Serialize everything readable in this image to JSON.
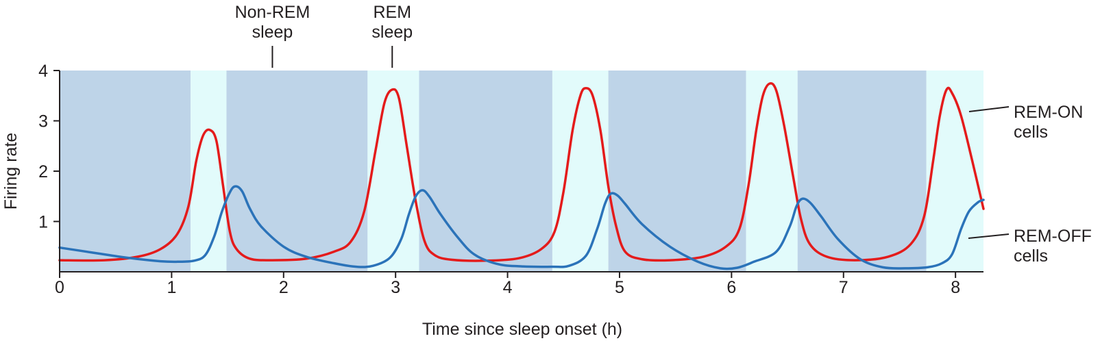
{
  "chart_data": {
    "type": "line",
    "title": "",
    "xlabel": "Time since sleep onset (h)",
    "ylabel": "Firing rate",
    "xlim": [
      0,
      8.25
    ],
    "ylim": [
      0,
      4
    ],
    "x_ticks": [
      0,
      1,
      2,
      3,
      4,
      5,
      6,
      7,
      8
    ],
    "y_ticks": [
      1,
      2,
      3,
      4
    ],
    "grid": false,
    "stage_annotations": [
      {
        "label": "Non-REM\nsleep",
        "x": 1.9
      },
      {
        "label": "REM\nsleep",
        "x": 2.97
      }
    ],
    "sleep_stages": [
      {
        "stage": "Non-REM",
        "start": 0,
        "end": 1.17
      },
      {
        "stage": "REM",
        "start": 1.17,
        "end": 1.49
      },
      {
        "stage": "Non-REM",
        "start": 1.49,
        "end": 2.75
      },
      {
        "stage": "REM",
        "start": 2.75,
        "end": 3.21
      },
      {
        "stage": "Non-REM",
        "start": 3.21,
        "end": 4.4
      },
      {
        "stage": "REM",
        "start": 4.4,
        "end": 4.9
      },
      {
        "stage": "Non-REM",
        "start": 4.9,
        "end": 6.13
      },
      {
        "stage": "REM",
        "start": 6.13,
        "end": 6.59
      },
      {
        "stage": "Non-REM",
        "start": 6.59,
        "end": 7.74
      },
      {
        "stage": "REM",
        "start": 7.74,
        "end": 8.25
      }
    ],
    "series": [
      {
        "name": "REM-ON\ncells",
        "color": "#e41b1b",
        "points": [
          [
            0,
            0.23
          ],
          [
            0.4,
            0.23
          ],
          [
            0.7,
            0.3
          ],
          [
            0.9,
            0.45
          ],
          [
            1.05,
            0.75
          ],
          [
            1.15,
            1.3
          ],
          [
            1.22,
            2.2
          ],
          [
            1.28,
            2.7
          ],
          [
            1.34,
            2.82
          ],
          [
            1.4,
            2.6
          ],
          [
            1.46,
            1.7
          ],
          [
            1.52,
            0.8
          ],
          [
            1.58,
            0.45
          ],
          [
            1.7,
            0.26
          ],
          [
            1.9,
            0.23
          ],
          [
            2.2,
            0.26
          ],
          [
            2.45,
            0.4
          ],
          [
            2.6,
            0.6
          ],
          [
            2.72,
            1.2
          ],
          [
            2.82,
            2.4
          ],
          [
            2.9,
            3.35
          ],
          [
            2.97,
            3.62
          ],
          [
            3.03,
            3.45
          ],
          [
            3.1,
            2.5
          ],
          [
            3.18,
            1.4
          ],
          [
            3.26,
            0.6
          ],
          [
            3.35,
            0.33
          ],
          [
            3.5,
            0.24
          ],
          [
            3.8,
            0.22
          ],
          [
            4.1,
            0.27
          ],
          [
            4.3,
            0.45
          ],
          [
            4.42,
            0.8
          ],
          [
            4.5,
            1.6
          ],
          [
            4.58,
            2.8
          ],
          [
            4.65,
            3.5
          ],
          [
            4.7,
            3.65
          ],
          [
            4.76,
            3.5
          ],
          [
            4.83,
            2.8
          ],
          [
            4.9,
            1.7
          ],
          [
            4.97,
            0.9
          ],
          [
            5.05,
            0.4
          ],
          [
            5.2,
            0.25
          ],
          [
            5.45,
            0.23
          ],
          [
            5.75,
            0.3
          ],
          [
            5.95,
            0.5
          ],
          [
            6.07,
            0.85
          ],
          [
            6.15,
            1.7
          ],
          [
            6.22,
            2.8
          ],
          [
            6.28,
            3.5
          ],
          [
            6.34,
            3.74
          ],
          [
            6.4,
            3.6
          ],
          [
            6.47,
            2.9
          ],
          [
            6.55,
            1.9
          ],
          [
            6.62,
            1.05
          ],
          [
            6.7,
            0.55
          ],
          [
            6.85,
            0.3
          ],
          [
            7.1,
            0.23
          ],
          [
            7.4,
            0.3
          ],
          [
            7.6,
            0.55
          ],
          [
            7.72,
            1.1
          ],
          [
            7.8,
            2.2
          ],
          [
            7.86,
            3.1
          ],
          [
            7.92,
            3.62
          ],
          [
            7.97,
            3.55
          ],
          [
            8.05,
            3.1
          ],
          [
            8.15,
            2.2
          ],
          [
            8.25,
            1.25
          ]
        ]
      },
      {
        "name": "REM-OFF\ncells",
        "color": "#2b73b9",
        "points": [
          [
            0,
            0.48
          ],
          [
            0.3,
            0.38
          ],
          [
            0.6,
            0.28
          ],
          [
            0.9,
            0.21
          ],
          [
            1.05,
            0.2
          ],
          [
            1.2,
            0.22
          ],
          [
            1.3,
            0.33
          ],
          [
            1.38,
            0.7
          ],
          [
            1.45,
            1.2
          ],
          [
            1.52,
            1.58
          ],
          [
            1.57,
            1.7
          ],
          [
            1.63,
            1.6
          ],
          [
            1.7,
            1.25
          ],
          [
            1.8,
            0.9
          ],
          [
            2.0,
            0.5
          ],
          [
            2.2,
            0.3
          ],
          [
            2.45,
            0.17
          ],
          [
            2.65,
            0.1
          ],
          [
            2.8,
            0.12
          ],
          [
            2.95,
            0.28
          ],
          [
            3.05,
            0.65
          ],
          [
            3.12,
            1.15
          ],
          [
            3.18,
            1.5
          ],
          [
            3.24,
            1.62
          ],
          [
            3.3,
            1.5
          ],
          [
            3.4,
            1.15
          ],
          [
            3.55,
            0.7
          ],
          [
            3.7,
            0.35
          ],
          [
            3.9,
            0.16
          ],
          [
            4.1,
            0.11
          ],
          [
            4.4,
            0.1
          ],
          [
            4.55,
            0.12
          ],
          [
            4.7,
            0.32
          ],
          [
            4.8,
            0.85
          ],
          [
            4.87,
            1.35
          ],
          [
            4.92,
            1.55
          ],
          [
            4.98,
            1.52
          ],
          [
            5.05,
            1.35
          ],
          [
            5.2,
            0.95
          ],
          [
            5.45,
            0.5
          ],
          [
            5.7,
            0.2
          ],
          [
            5.9,
            0.07
          ],
          [
            6.05,
            0.08
          ],
          [
            6.2,
            0.2
          ],
          [
            6.4,
            0.4
          ],
          [
            6.52,
            0.9
          ],
          [
            6.58,
            1.3
          ],
          [
            6.63,
            1.45
          ],
          [
            6.7,
            1.38
          ],
          [
            6.8,
            1.1
          ],
          [
            6.95,
            0.65
          ],
          [
            7.15,
            0.25
          ],
          [
            7.35,
            0.09
          ],
          [
            7.55,
            0.07
          ],
          [
            7.75,
            0.09
          ],
          [
            7.88,
            0.17
          ],
          [
            7.97,
            0.35
          ],
          [
            8.05,
            0.85
          ],
          [
            8.12,
            1.2
          ],
          [
            8.2,
            1.38
          ],
          [
            8.25,
            1.43
          ]
        ]
      }
    ],
    "background_colors": {
      "Non-REM": "#bed4e8",
      "REM": "#e2fbfb"
    }
  }
}
